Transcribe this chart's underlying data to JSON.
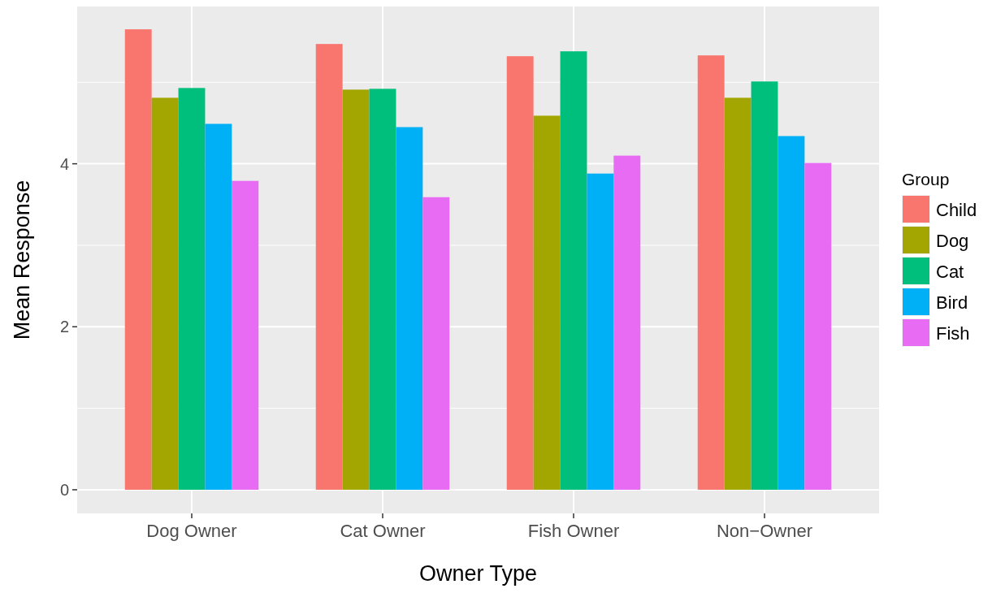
{
  "chart_data": {
    "type": "bar",
    "xlabel": "Owner Type",
    "ylabel": "Mean Response",
    "legend_title": "Group",
    "categories": [
      "Dog Owner",
      "Cat Owner",
      "Fish Owner",
      "Non−Owner"
    ],
    "series": [
      {
        "name": "Child",
        "color": "#f8766d",
        "values": [
          5.65,
          5.47,
          5.32,
          5.33
        ]
      },
      {
        "name": "Dog",
        "color": "#a3a500",
        "values": [
          4.81,
          4.91,
          4.59,
          4.81
        ]
      },
      {
        "name": "Cat",
        "color": "#00bf7d",
        "values": [
          4.93,
          4.92,
          5.38,
          5.01
        ]
      },
      {
        "name": "Bird",
        "color": "#00b0f6",
        "values": [
          4.49,
          4.45,
          3.88,
          4.34
        ]
      },
      {
        "name": "Fish",
        "color": "#e76bf3",
        "values": [
          3.79,
          3.59,
          4.1,
          4.01
        ]
      }
    ],
    "ylim": [
      -0.29,
      5.93
    ],
    "yticks": [
      0,
      {
        "value": 1,
        "label": null
      },
      2,
      {
        "value": 3,
        "label": null
      },
      4,
      {
        "value": 5,
        "label": null
      }
    ],
    "grid": true,
    "legend": "right"
  }
}
